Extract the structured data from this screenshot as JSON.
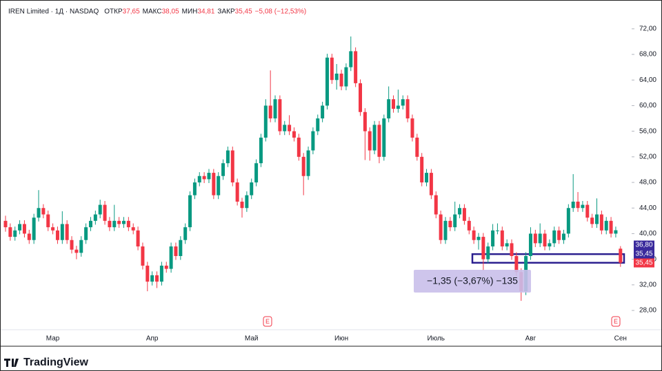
{
  "chart_data": {
    "type": "candlestick",
    "title": "IREN Limited · 1Д · NASDAQ",
    "header": [
      {
        "label": "ОТКР",
        "value": "37,65"
      },
      {
        "label": "МАКС",
        "value": "38,05"
      },
      {
        "label": "МИН",
        "value": "34,81"
      },
      {
        "label": "ЗАКР",
        "value": "35,45"
      }
    ],
    "change": "−5,08 (−12,53%)",
    "up_color": "#089981",
    "down_color": "#f23645",
    "ylim": [
      25.1,
      76.5
    ],
    "yticks": [
      {
        "value": 28,
        "label": "28,00"
      },
      {
        "value": 32,
        "label": "32,00"
      },
      {
        "value": 36,
        "label": "36,00"
      },
      {
        "value": 40,
        "label": "40,00"
      },
      {
        "value": 44,
        "label": "44,00"
      },
      {
        "value": 48,
        "label": "48,00"
      },
      {
        "value": 52,
        "label": "52,00"
      },
      {
        "value": 56,
        "label": "56,00"
      },
      {
        "value": 60,
        "label": "60,00"
      },
      {
        "value": 64,
        "label": "64,00"
      },
      {
        "value": 68,
        "label": "68,00"
      },
      {
        "value": 72,
        "label": "72,00"
      }
    ],
    "grid": false,
    "categories": [
      null,
      null,
      null,
      null,
      null,
      null,
      null,
      null,
      null,
      null,
      "Мар",
      null,
      null,
      null,
      null,
      null,
      null,
      null,
      null,
      null,
      null,
      null,
      null,
      null,
      null,
      null,
      null,
      null,
      null,
      null,
      null,
      "Апр",
      null,
      null,
      null,
      null,
      null,
      null,
      null,
      null,
      null,
      null,
      null,
      null,
      null,
      null,
      null,
      null,
      null,
      null,
      null,
      null,
      "Май",
      null,
      null,
      null,
      null,
      null,
      null,
      null,
      null,
      null,
      null,
      null,
      null,
      null,
      null,
      null,
      null,
      null,
      null,
      "Июн",
      null,
      null,
      null,
      null,
      null,
      null,
      null,
      null,
      null,
      null,
      null,
      null,
      null,
      null,
      null,
      null,
      null,
      null,
      null,
      "Июль",
      null,
      null,
      null,
      null,
      null,
      null,
      null,
      null,
      null,
      null,
      null,
      null,
      null,
      null,
      null,
      null,
      null,
      null,
      null,
      "Авг",
      null,
      null,
      null,
      null,
      null,
      null,
      null,
      null,
      null,
      null,
      null,
      null,
      null,
      null,
      null,
      null,
      null,
      null,
      "Сен"
    ],
    "candles": [
      [
        42,
        42.8,
        40.3,
        41
      ],
      [
        41,
        41.6,
        38.9,
        39.5
      ],
      [
        39.5,
        41.1,
        38.9,
        40.5
      ],
      [
        40.5,
        42.1,
        39.9,
        41.5
      ],
      [
        41.5,
        42.1,
        39.4,
        40
      ],
      [
        40,
        40.6,
        38.4,
        39
      ],
      [
        39,
        43.1,
        38.4,
        42.5
      ],
      [
        42.5,
        46.8,
        41.9,
        44
      ],
      [
        44,
        44.6,
        42.4,
        43
      ],
      [
        43,
        43.6,
        40.4,
        41
      ],
      [
        41,
        41.6,
        39.9,
        40.5
      ],
      [
        40.5,
        41.1,
        38.4,
        39
      ],
      [
        39,
        43.5,
        38.4,
        41.5
      ],
      [
        41.5,
        42.1,
        38.4,
        39
      ],
      [
        39,
        39.6,
        36.9,
        37.5
      ],
      [
        37.5,
        38.1,
        36,
        37
      ],
      [
        37,
        39.6,
        36.4,
        39
      ],
      [
        39,
        41.6,
        38.4,
        41
      ],
      [
        41,
        42.6,
        40.4,
        42
      ],
      [
        42,
        43.6,
        41.4,
        43
      ],
      [
        43,
        45.3,
        42.4,
        44.5
      ],
      [
        44.5,
        45.1,
        41.4,
        42
      ],
      [
        42,
        42.6,
        40.4,
        41
      ],
      [
        41,
        44.5,
        40.4,
        42
      ],
      [
        42,
        42.6,
        40.9,
        41.5
      ],
      [
        41.5,
        42.6,
        40.9,
        42
      ],
      [
        42,
        42.6,
        40.4,
        41
      ],
      [
        41,
        41.6,
        39.9,
        40.5
      ],
      [
        40.5,
        41.1,
        37.4,
        38
      ],
      [
        38,
        38.6,
        34.4,
        35
      ],
      [
        35,
        35.6,
        31,
        32.5
      ],
      [
        32.5,
        34.1,
        31.9,
        33.5
      ],
      [
        33.5,
        34.1,
        31.5,
        32.5
      ],
      [
        32.5,
        35.6,
        31.9,
        35
      ],
      [
        35,
        35.6,
        33.9,
        34.5
      ],
      [
        34.5,
        38.6,
        33.9,
        38
      ],
      [
        38,
        38.6,
        35.9,
        36.5
      ],
      [
        36.5,
        39.6,
        35.9,
        39
      ],
      [
        39,
        41.6,
        38.4,
        41
      ],
      [
        41,
        46.6,
        40.4,
        46
      ],
      [
        46,
        48.6,
        45.4,
        48
      ],
      [
        48,
        49.6,
        47.4,
        49
      ],
      [
        49,
        49.6,
        47.9,
        48.5
      ],
      [
        48.5,
        50.1,
        47.9,
        49.5
      ],
      [
        49.5,
        50.1,
        45.4,
        46
      ],
      [
        46,
        49.6,
        45.4,
        49
      ],
      [
        49,
        51.6,
        48.4,
        51
      ],
      [
        51,
        53.6,
        50.4,
        53
      ],
      [
        53,
        53.6,
        47.4,
        48
      ],
      [
        48,
        48.6,
        44.4,
        45
      ],
      [
        45,
        45.6,
        42.5,
        44
      ],
      [
        44,
        46.6,
        43.4,
        46
      ],
      [
        46,
        48.6,
        45.4,
        48
      ],
      [
        48,
        51.6,
        47.4,
        51
      ],
      [
        51,
        55.6,
        50.4,
        55
      ],
      [
        55,
        61,
        54.4,
        60
      ],
      [
        60,
        65.5,
        57.4,
        58
      ],
      [
        58,
        61.6,
        57.4,
        61
      ],
      [
        61,
        61.6,
        55.4,
        56
      ],
      [
        56,
        57.6,
        55.4,
        57
      ],
      [
        57,
        58.5,
        55.4,
        56
      ],
      [
        56,
        56.6,
        54.4,
        55
      ],
      [
        55,
        55.6,
        51.4,
        52
      ],
      [
        52,
        52.6,
        46,
        49
      ],
      [
        49,
        53.6,
        48.4,
        53
      ],
      [
        53,
        56.6,
        52.4,
        56
      ],
      [
        56,
        58.6,
        55.4,
        58
      ],
      [
        58,
        60.6,
        57.4,
        60
      ],
      [
        60,
        68.1,
        59.4,
        67.5
      ],
      [
        67.5,
        68.1,
        63.4,
        64
      ],
      [
        64,
        66.5,
        62.5,
        65
      ],
      [
        65,
        65.6,
        62.4,
        63
      ],
      [
        63,
        66.6,
        62.4,
        66
      ],
      [
        66,
        70.8,
        65.4,
        68.5
      ],
      [
        68.5,
        69.1,
        62.9,
        63.5
      ],
      [
        63.5,
        64.1,
        58.4,
        59
      ],
      [
        59,
        59.6,
        51.5,
        56
      ],
      [
        56,
        56.6,
        51.4,
        53
      ],
      [
        53,
        57.6,
        52.4,
        57
      ],
      [
        57,
        57.6,
        51,
        52
      ],
      [
        52,
        58.6,
        51.4,
        58
      ],
      [
        58,
        63,
        57.4,
        61
      ],
      [
        61,
        61.6,
        58.9,
        59.5
      ],
      [
        59.5,
        62.5,
        58.9,
        60
      ],
      [
        60,
        61.6,
        59.4,
        61
      ],
      [
        61,
        61.6,
        57.4,
        58
      ],
      [
        58,
        58.6,
        54.4,
        55
      ],
      [
        55,
        55.6,
        51.4,
        52
      ],
      [
        52,
        52.6,
        47.4,
        48
      ],
      [
        48,
        50.1,
        47.4,
        49.5
      ],
      [
        49.5,
        50.1,
        45.4,
        46
      ],
      [
        46,
        46.6,
        42.4,
        43
      ],
      [
        43,
        43.6,
        38.4,
        39
      ],
      [
        39,
        42.6,
        38.4,
        42
      ],
      [
        42,
        42.6,
        40.4,
        41
      ],
      [
        41,
        45,
        40.4,
        43
      ],
      [
        43,
        44.6,
        42.4,
        44
      ],
      [
        44,
        44.6,
        41.4,
        42
      ],
      [
        42,
        42.6,
        39.9,
        40.5
      ],
      [
        40.5,
        41.1,
        38.4,
        39
      ],
      [
        39,
        40.1,
        37.5,
        39.5
      ],
      [
        39.5,
        40.1,
        34.2,
        36
      ],
      [
        36,
        38.6,
        35.4,
        38
      ],
      [
        38,
        41.5,
        37.4,
        40.5
      ],
      [
        40.5,
        41.6,
        39.9,
        40.5
      ],
      [
        40.5,
        41.1,
        37.4,
        38
      ],
      [
        38,
        39.1,
        37.4,
        38.5
      ],
      [
        38.5,
        39.1,
        35.9,
        36.5
      ],
      [
        36.5,
        37.1,
        33.4,
        34
      ],
      [
        34,
        34.6,
        29.5,
        31
      ],
      [
        31,
        37.1,
        30.4,
        36.5
      ],
      [
        36.5,
        41,
        35.9,
        40
      ],
      [
        40,
        40.6,
        37.9,
        38.5
      ],
      [
        38.5,
        41.6,
        37.9,
        40
      ],
      [
        40,
        40.6,
        37.4,
        38
      ],
      [
        38,
        39.1,
        37.4,
        38.5
      ],
      [
        38.5,
        41.1,
        37.9,
        40.5
      ],
      [
        40.5,
        41.1,
        38.4,
        39
      ],
      [
        39,
        40.6,
        38.4,
        40
      ],
      [
        40,
        44.6,
        39.4,
        44
      ],
      [
        44,
        49.3,
        43.4,
        45
      ],
      [
        45,
        46.5,
        43.4,
        44
      ],
      [
        44,
        45.1,
        43.4,
        44.5
      ],
      [
        44.5,
        45.1,
        41.9,
        42.5
      ],
      [
        42.5,
        43.1,
        40.9,
        41.5
      ],
      [
        41.5,
        45.5,
        40.9,
        43
      ],
      [
        43,
        43.6,
        39.9,
        40.5
      ],
      [
        40.5,
        42.6,
        39.9,
        42
      ],
      [
        42,
        42.6,
        39.4,
        40
      ],
      [
        40,
        41.1,
        39.4,
        40.53
      ],
      [
        37.65,
        38.05,
        34.81,
        35.45
      ],
      null
    ],
    "price_labels": [
      {
        "value": 36.8,
        "label": "36,80",
        "color": "#3a2a9c"
      },
      {
        "value": 35.45,
        "label": "35,45",
        "color": "#3a2a9c"
      },
      {
        "value": 35.45,
        "label": "35,45",
        "color": "#f23645"
      }
    ],
    "measure": {
      "top": 36.8,
      "bottom": 35.45,
      "label": "−1,35 (−3,67%) −135",
      "color": "#2b1f8f"
    },
    "events": [
      "E",
      "E"
    ],
    "brand": "TradingView"
  }
}
